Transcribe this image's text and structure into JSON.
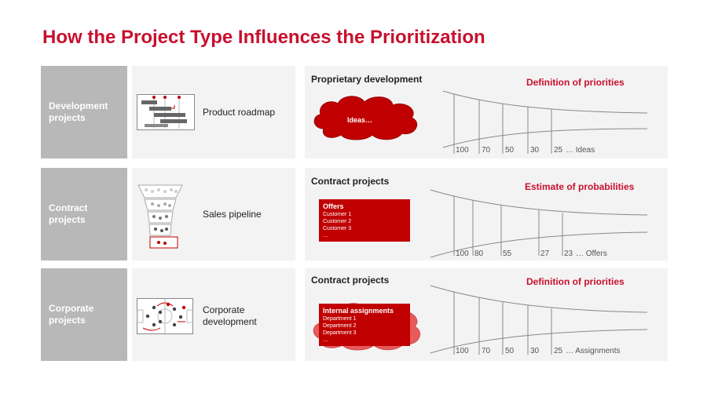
{
  "title": "How the Project Type Influences the Prioritization",
  "rows": [
    {
      "category": [
        "Development",
        "projects"
      ],
      "icon": "gantt-icon",
      "mid_label": [
        "Product roadmap"
      ],
      "panel_heading": "Proprietary development",
      "panel_red_title": "Definition of priorities",
      "content_type": "cloud",
      "content_title": "Ideas…",
      "content_items": [],
      "ticks": [
        "100",
        "70",
        "50",
        "30",
        "25"
      ],
      "tick_suffix": "… Ideas"
    },
    {
      "category": [
        "Contract",
        "projects"
      ],
      "icon": "sales-funnel-icon",
      "mid_label": [
        "Sales pipeline"
      ],
      "panel_heading": "Contract projects",
      "panel_red_title": "Estimate of probabilities",
      "content_type": "box",
      "content_title": "Offers",
      "content_items": [
        "Customer 1",
        "Customer 2",
        "Customer 3",
        "…"
      ],
      "ticks": [
        "100",
        "80",
        "55",
        "27",
        "23"
      ],
      "tick_suffix": "… Offers"
    },
    {
      "category": [
        "Corporate",
        "projects"
      ],
      "icon": "strategy-board-icon",
      "mid_label": [
        "Corporate",
        "development"
      ],
      "panel_heading": "Contract projects",
      "panel_red_title": "Definition of priorities",
      "content_type": "cloud-box",
      "content_title": "Internal assignments",
      "content_items": [
        "Department 1",
        "Department 2",
        "Department 3",
        "…"
      ],
      "ticks": [
        "100",
        "70",
        "50",
        "30",
        "25"
      ],
      "tick_suffix": "… Assignments"
    }
  ],
  "colors": {
    "accent": "#c8102e",
    "label_bg": "#b8b8b8",
    "panel_bg": "#f3f3f3",
    "red_fill": "#c00000"
  }
}
